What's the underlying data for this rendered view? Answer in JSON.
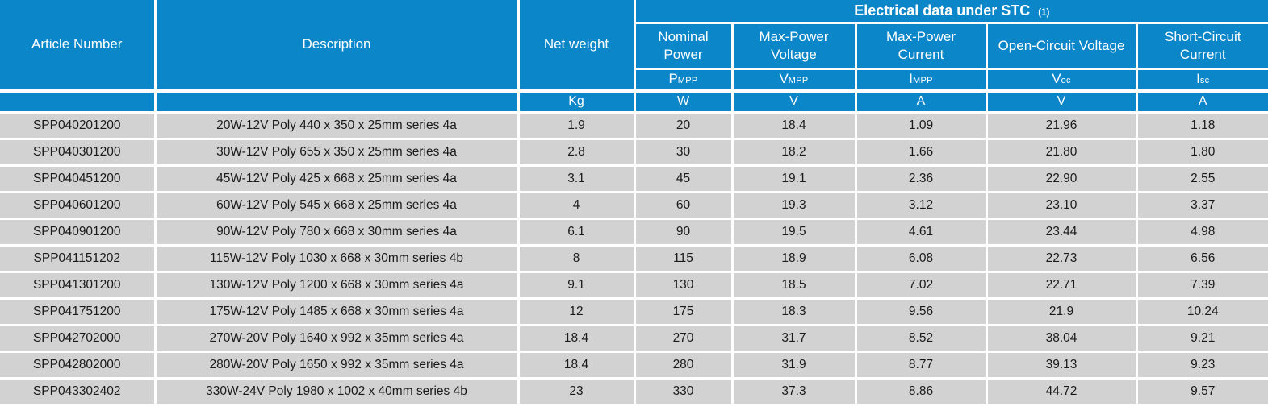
{
  "table": {
    "header": {
      "article": "Article Number",
      "description": "Description",
      "net_weight": "Net weight",
      "banner_title": "Electrical data under STC",
      "banner_footnote": "(1)"
    },
    "electrical_columns": [
      {
        "label": "Nominal Power",
        "symbol_main": "P",
        "symbol_sub": "MPP"
      },
      {
        "label": "Max-Power Voltage",
        "symbol_main": "V",
        "symbol_sub": "MPP"
      },
      {
        "label": "Max-Power Current",
        "symbol_main": "I",
        "symbol_sub": "MPP"
      },
      {
        "label": "Open-Circuit Voltage",
        "symbol_main": "V",
        "symbol_sub": "oc"
      },
      {
        "label": "Short-Circuit Current",
        "symbol_main": "I",
        "symbol_sub": "sc"
      }
    ],
    "units": [
      "",
      "",
      "Kg",
      "W",
      "V",
      "A",
      "V",
      "A"
    ],
    "column_keys": [
      "article-number",
      "description",
      "net-weight",
      "nominal-power-pmpp",
      "max-power-voltage-vmpp",
      "max-power-current-impp",
      "open-circuit-voltage-voc",
      "short-circuit-current-isc"
    ],
    "rows": [
      [
        "SPP040201200",
        "20W-12V Poly 440 x 350 x 25mm series 4a",
        "1.9",
        "20",
        "18.4",
        "1.09",
        "21.96",
        "1.18"
      ],
      [
        "SPP040301200",
        "30W-12V Poly 655 x 350 x 25mm series 4a",
        "2.8",
        "30",
        "18.2",
        "1.66",
        "21.80",
        "1.80"
      ],
      [
        "SPP040451200",
        "45W-12V Poly 425 x 668 x 25mm series 4a",
        "3.1",
        "45",
        "19.1",
        "2.36",
        "22.90",
        "2.55"
      ],
      [
        "SPP040601200",
        "60W-12V Poly 545 x 668 x 25mm series 4a",
        "4",
        "60",
        "19.3",
        "3.12",
        "23.10",
        "3.37"
      ],
      [
        "SPP040901200",
        "90W-12V Poly 780 x 668 x 30mm series 4a",
        "6.1",
        "90",
        "19.5",
        "4.61",
        "23.44",
        "4.98"
      ],
      [
        "SPP041151202",
        "115W-12V Poly 1030 x 668 x 30mm series 4b",
        "8",
        "115",
        "18.9",
        "6.08",
        "22.73",
        "6.56"
      ],
      [
        "SPP041301200",
        "130W-12V Poly 1200 x 668 x 30mm series 4a",
        "9.1",
        "130",
        "18.5",
        "7.02",
        "22.71",
        "7.39"
      ],
      [
        "SPP041751200",
        "175W-12V Poly 1485 x 668 x 30mm series 4a",
        "12",
        "175",
        "18.3",
        "9.56",
        "21.9",
        "10.24"
      ],
      [
        "SPP042702000",
        "270W-20V Poly 1640 x 992 x 35mm series 4a",
        "18.4",
        "270",
        "31.7",
        "8.52",
        "38.04",
        "9.21"
      ],
      [
        "SPP042802000",
        "280W-20V Poly 1650 x 992 x 35mm series 4a",
        "18.4",
        "280",
        "31.9",
        "8.77",
        "39.13",
        "9.23"
      ],
      [
        "SPP043302402",
        "330W-24V Poly 1980 x 1002 x 40mm series 4b",
        "23",
        "330",
        "37.3",
        "8.86",
        "44.72",
        "9.57"
      ]
    ],
    "colors": {
      "header_blue": "#0a86c9",
      "row_gray": "#d2d2d2",
      "grid_white": "#ffffff",
      "data_text": "#1a1a1a",
      "header_text": "#ffffff"
    }
  }
}
